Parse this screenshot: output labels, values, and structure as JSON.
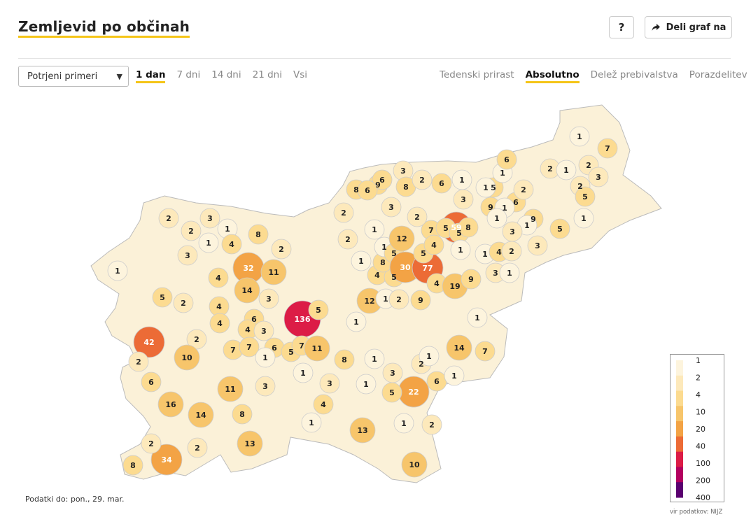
{
  "header": {
    "title": "Zemljevid po občinah",
    "help_label": "?",
    "share_label": "Deli graf na"
  },
  "controls": {
    "select_value": "Potrjeni primeri",
    "period_tabs": [
      {
        "label": "1 dan",
        "active": true
      },
      {
        "label": "7 dni",
        "active": false
      },
      {
        "label": "14 dni",
        "active": false
      },
      {
        "label": "21 dni",
        "active": false
      },
      {
        "label": "Vsi",
        "active": false
      }
    ],
    "mode_tabs": [
      {
        "label": "Tedenski prirast",
        "active": false
      },
      {
        "label": "Absolutno",
        "active": true
      },
      {
        "label": "Delež prebivalstva",
        "active": false
      },
      {
        "label": "Porazdelitev",
        "active": false
      }
    ]
  },
  "map": {
    "municipality_values": [
      2,
      3,
      2,
      1,
      1,
      8,
      4,
      3,
      2,
      1,
      32,
      11,
      4,
      14,
      3,
      5,
      42,
      2,
      2,
      4,
      4,
      6,
      4,
      3,
      136,
      5,
      2,
      10,
      6,
      7,
      7,
      6,
      5,
      7,
      11,
      1,
      1,
      3,
      8,
      1,
      1,
      11,
      3,
      16,
      14,
      8,
      13,
      34,
      2,
      2,
      8,
      4,
      1,
      13,
      1,
      10,
      22,
      5,
      6,
      3,
      2,
      1,
      2,
      1,
      14,
      7,
      1,
      12,
      1,
      2,
      9,
      1,
      4,
      5,
      8,
      1,
      1,
      5,
      30,
      77,
      4,
      19,
      9,
      12,
      5,
      7,
      2,
      2,
      9,
      3,
      1,
      3,
      8,
      6,
      8,
      6,
      2,
      6,
      1,
      3,
      2,
      4,
      59,
      5,
      1,
      6,
      6,
      9,
      1,
      9,
      1,
      3,
      3,
      5,
      5,
      5,
      8,
      1,
      1,
      1,
      4,
      2,
      3,
      1,
      1,
      2,
      2,
      1,
      2,
      5,
      1,
      1,
      7,
      2,
      3
    ],
    "colors": {
      "c1": "#fdf4dd",
      "c2": "#fde9bb",
      "c4": "#fcdb90",
      "c10": "#f7c56b",
      "c20": "#f3a345",
      "c40": "#ec6b36",
      "c100": "#dc1c46",
      "c200": "#b3005f",
      "c400": "#5a0070"
    }
  },
  "legend": {
    "title": "",
    "labels": [
      "1",
      "2",
      "4",
      "10",
      "20",
      "40",
      "100",
      "200",
      "400"
    ],
    "colors": [
      "#fdf4dd",
      "#fde9bb",
      "#fcdb90",
      "#f7c56b",
      "#f3a345",
      "#ec6b36",
      "#dc1c46",
      "#b3005f",
      "#5a0070"
    ]
  },
  "footer": {
    "data_date": "Podatki do: pon., 29. mar.",
    "source": "vir podatkov: NIJZ"
  }
}
